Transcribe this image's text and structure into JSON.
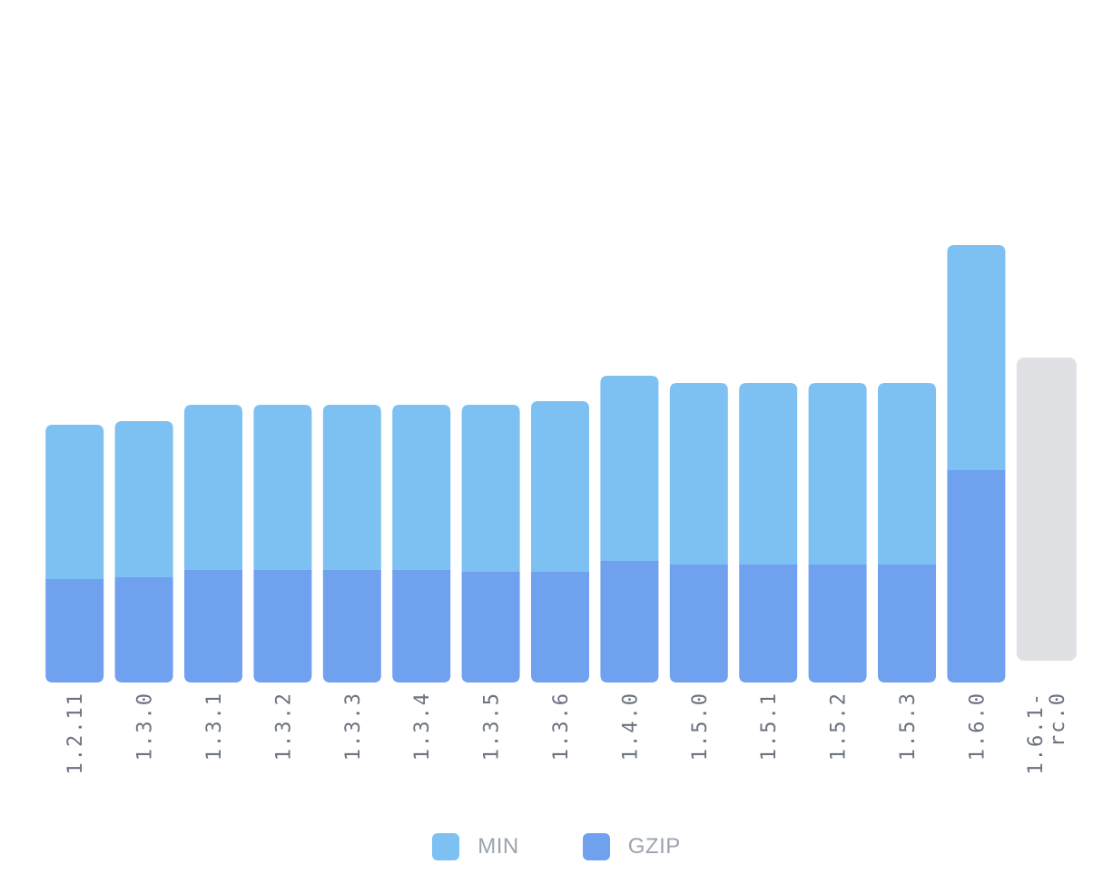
{
  "chart_data": {
    "type": "bar",
    "stacked": true,
    "categories": [
      "1.2.11",
      "1.3.0",
      "1.3.1",
      "1.3.2",
      "1.3.3",
      "1.3.4",
      "1.3.5",
      "1.3.6",
      "1.4.0",
      "1.5.0",
      "1.5.1",
      "1.5.2",
      "1.5.3",
      "1.6.0",
      "1.6.1-rc.0"
    ],
    "category_lines": [
      [
        "1.2.11"
      ],
      [
        "1.3.0"
      ],
      [
        "1.3.1"
      ],
      [
        "1.3.2"
      ],
      [
        "1.3.3"
      ],
      [
        "1.3.4"
      ],
      [
        "1.3.5"
      ],
      [
        "1.3.6"
      ],
      [
        "1.4.0"
      ],
      [
        "1.5.0"
      ],
      [
        "1.5.1"
      ],
      [
        "1.5.2"
      ],
      [
        "1.5.3"
      ],
      [
        "1.6.0"
      ],
      [
        "1.6.1-",
        "rc.0"
      ]
    ],
    "series": [
      {
        "name": "GZIP",
        "color": "#70a1ef",
        "values": [
          114,
          116,
          124,
          124,
          124,
          124,
          122,
          122,
          134,
          130,
          130,
          130,
          130,
          234,
          null
        ]
      },
      {
        "name": "MIN",
        "color": "#7cc1f2",
        "values": [
          284,
          288,
          306,
          306,
          306,
          306,
          306,
          310,
          338,
          330,
          330,
          330,
          330,
          482,
          null
        ]
      }
    ],
    "pending": {
      "index": 14,
      "value": 358,
      "color": "#e0e1e5"
    },
    "legend": [
      {
        "name": "MIN",
        "color": "#7cc1f2"
      },
      {
        "name": "GZIP",
        "color": "#70a1ef"
      }
    ],
    "title": "",
    "xlabel": "",
    "ylabel": "",
    "ylim": [
      0,
      720
    ],
    "grid": false,
    "legend_position": "bottom-center"
  }
}
